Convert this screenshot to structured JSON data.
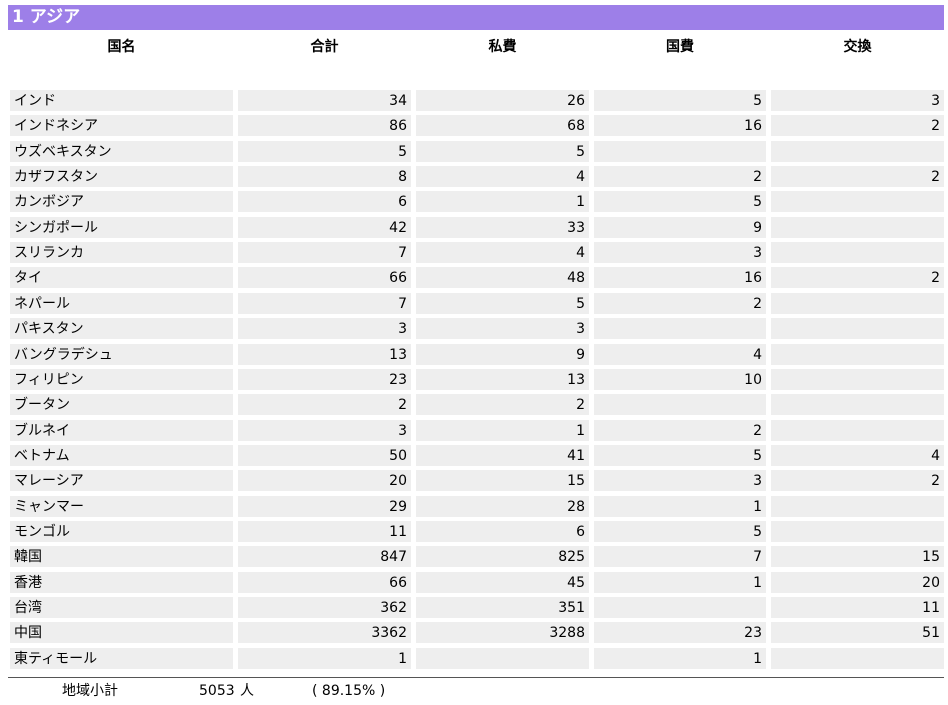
{
  "header": {
    "title": "1 アジア"
  },
  "table": {
    "columns": [
      "国名",
      "合計",
      "私費",
      "国費",
      "交換"
    ],
    "rows": [
      [
        "インド",
        34,
        26,
        5,
        3
      ],
      [
        "インドネシア",
        86,
        68,
        16,
        2
      ],
      [
        "ウズベキスタン",
        5,
        5,
        null,
        null
      ],
      [
        "カザフスタン",
        8,
        4,
        2,
        2
      ],
      [
        "カンボジア",
        6,
        1,
        5,
        null
      ],
      [
        "シンガポール",
        42,
        33,
        9,
        null
      ],
      [
        "スリランカ",
        7,
        4,
        3,
        null
      ],
      [
        "タイ",
        66,
        48,
        16,
        2
      ],
      [
        "ネパール",
        7,
        5,
        2,
        null
      ],
      [
        "パキスタン",
        3,
        3,
        null,
        null
      ],
      [
        "バングラデシュ",
        13,
        9,
        4,
        null
      ],
      [
        "フィリピン",
        23,
        13,
        10,
        null
      ],
      [
        "ブータン",
        2,
        2,
        null,
        null
      ],
      [
        "ブルネイ",
        3,
        1,
        2,
        null
      ],
      [
        "ベトナム",
        50,
        41,
        5,
        4
      ],
      [
        "マレーシア",
        20,
        15,
        3,
        2
      ],
      [
        "ミャンマー",
        29,
        28,
        1,
        null
      ],
      [
        "モンゴル",
        11,
        6,
        5,
        null
      ],
      [
        "韓国",
        847,
        825,
        7,
        15
      ],
      [
        "香港",
        66,
        45,
        1,
        20
      ],
      [
        "台湾",
        362,
        351,
        null,
        11
      ],
      [
        "中国",
        3362,
        3288,
        23,
        51
      ],
      [
        "東ティモール",
        1,
        null,
        1,
        null
      ]
    ]
  },
  "footer": {
    "label": "地域小計",
    "total": 5053,
    "unit": "人",
    "share": "( 89.15% )"
  }
}
